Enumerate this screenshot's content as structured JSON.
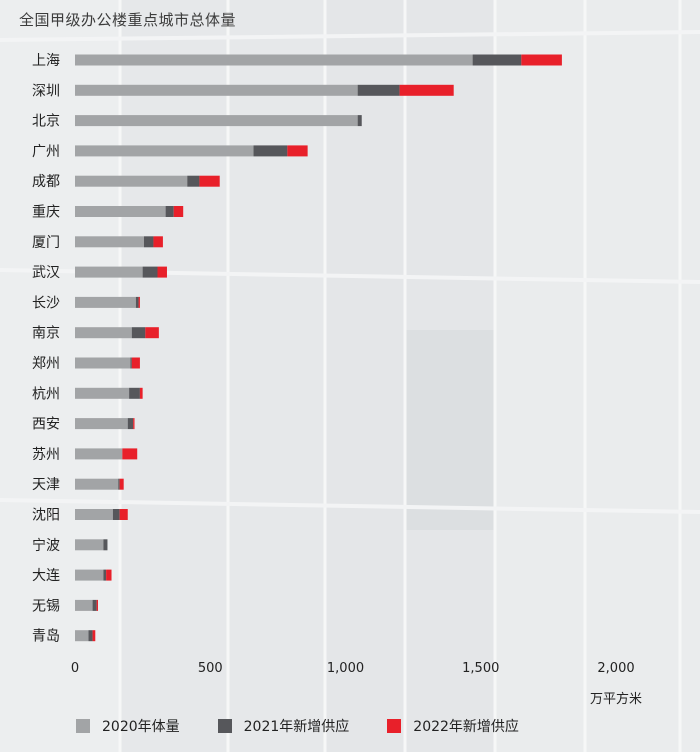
{
  "title": "全国甲级办公楼重点城市总体量",
  "chart_data": {
    "type": "bar",
    "orientation": "horizontal",
    "stacked": true,
    "categories": [
      "上海",
      "深圳",
      "北京",
      "广州",
      "成都",
      "重庆",
      "厦门",
      "武汉",
      "长沙",
      "南京",
      "郑州",
      "杭州",
      "西安",
      "苏州",
      "天津",
      "沈阳",
      "宁波",
      "大连",
      "无锡",
      "青岛"
    ],
    "series": [
      {
        "name": "2020年体量",
        "color": "#a2a4a6",
        "values": [
          1470,
          1045,
          1045,
          660,
          415,
          335,
          255,
          250,
          225,
          210,
          205,
          200,
          195,
          175,
          160,
          140,
          105,
          105,
          65,
          50
        ]
      },
      {
        "name": "2021年新增供应",
        "color": "#56575b",
        "values": [
          180,
          155,
          15,
          125,
          45,
          30,
          35,
          55,
          10,
          50,
          5,
          40,
          20,
          0,
          5,
          25,
          15,
          10,
          15,
          15
        ]
      },
      {
        "name": "2022年新增供应",
        "color": "#e8202a",
        "values": [
          150,
          200,
          0,
          75,
          75,
          35,
          35,
          35,
          5,
          50,
          30,
          10,
          5,
          55,
          15,
          30,
          0,
          20,
          5,
          10
        ]
      }
    ],
    "xlim": [
      0,
      2000
    ],
    "xticks": [
      0,
      500,
      1000,
      1500,
      2000
    ],
    "xtick_labels": [
      "0",
      "500",
      "1,000",
      "1,500",
      "2,000"
    ],
    "unit": "万平方米",
    "grid": false,
    "legend_position": "bottom"
  }
}
